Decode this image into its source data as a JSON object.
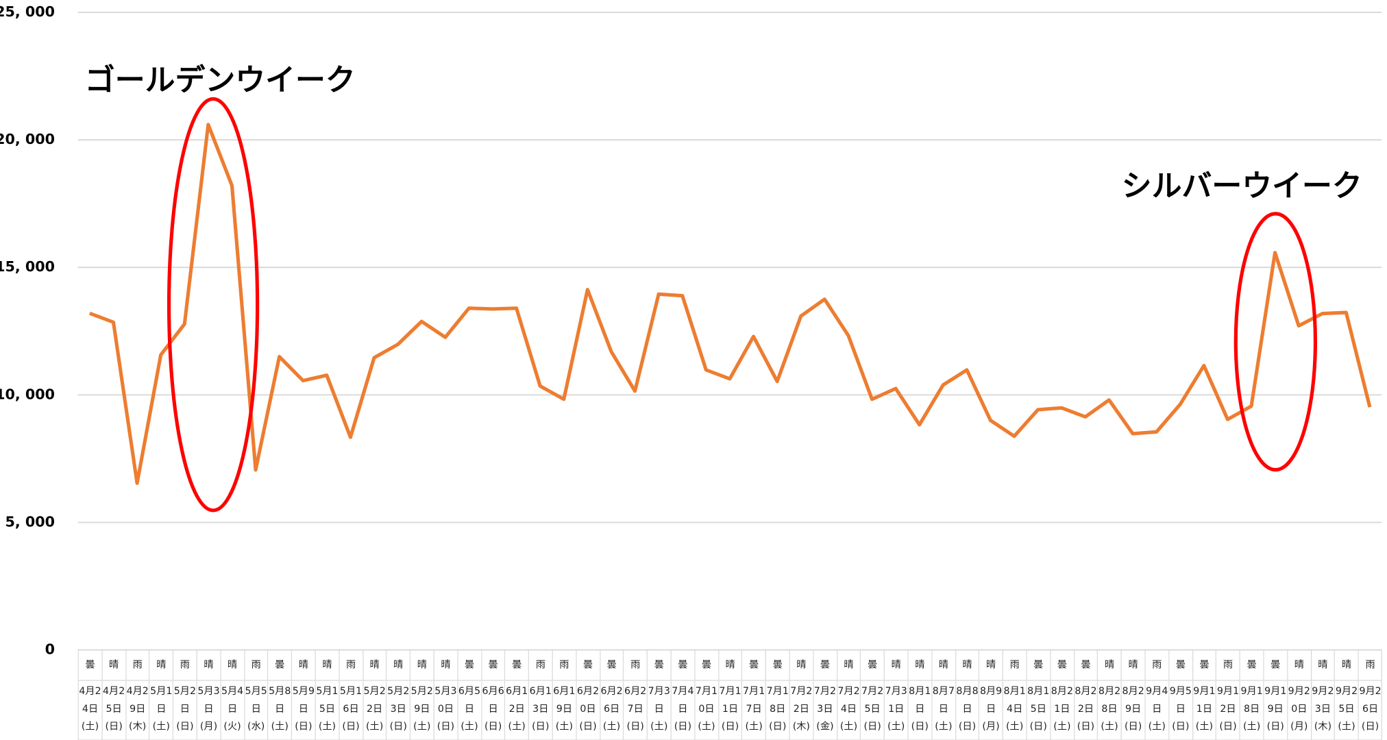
{
  "chart_data": {
    "type": "line",
    "annotations": [
      "ゴールデンウイーク",
      "シルバーウイーク"
    ],
    "weather": [
      "曇",
      "晴",
      "雨",
      "晴",
      "雨",
      "晴",
      "晴",
      "雨",
      "曇",
      "晴",
      "晴",
      "雨",
      "晴",
      "晴",
      "晴",
      "晴",
      "曇",
      "曇",
      "曇",
      "雨",
      "雨",
      "曇",
      "曇",
      "雨",
      "曇",
      "曇",
      "曇",
      "晴",
      "曇",
      "曇",
      "晴",
      "曇",
      "晴",
      "曇",
      "晴",
      "晴",
      "晴",
      "晴",
      "晴",
      "雨",
      "曇",
      "曇",
      "曇",
      "晴",
      "晴",
      "雨",
      "曇",
      "曇",
      "雨",
      "曇",
      "曇",
      "晴",
      "晴",
      "晴",
      "雨"
    ],
    "categories": [
      "4月24日(土)",
      "4月25日(日)",
      "4月29日(木)",
      "5月1日(土)",
      "5月2日(日)",
      "5月3日(月)",
      "5月4日(火)",
      "5月5日(水)",
      "5月8日(土)",
      "5月9日(日)",
      "5月15日(土)",
      "5月16日(日)",
      "5月22日(土)",
      "5月23日(日)",
      "5月29日(土)",
      "5月30日(日)",
      "6月5日(土)",
      "6月6日(日)",
      "6月12日(土)",
      "6月13日(日)",
      "6月19日(土)",
      "6月20日(日)",
      "6月26日(土)",
      "6月27日(日)",
      "7月3日(土)",
      "7月4日(日)",
      "7月10日(土)",
      "7月11日(日)",
      "7月17日(土)",
      "7月18日(日)",
      "7月22日(木)",
      "7月23日(金)",
      "7月24日(土)",
      "7月25日(日)",
      "7月31日(土)",
      "8月1日(日)",
      "8月7日(土)",
      "8月8日(日)",
      "8月9日(月)",
      "8月14日(土)",
      "8月15日(日)",
      "8月21日(土)",
      "8月22日(日)",
      "8月28日(土)",
      "8月29日(日)",
      "9月4日(土)",
      "9月5日(日)",
      "9月11日(土)",
      "9月12日(日)",
      "9月18日(土)",
      "9月19日(日)",
      "9月20日(月)",
      "9月23日(木)",
      "9月25日(土)",
      "9月26日(日)"
    ],
    "values": [
      13200,
      12850,
      6540,
      11570,
      12780,
      20600,
      18210,
      7060,
      11500,
      10560,
      10770,
      8340,
      11460,
      11980,
      12880,
      12260,
      13400,
      13370,
      13400,
      10350,
      9830,
      14130,
      11700,
      10150,
      13950,
      13890,
      10980,
      10630,
      12290,
      10530,
      13090,
      13750,
      12330,
      9830,
      10250,
      8830,
      10390,
      10980,
      9000,
      8380,
      9420,
      9490,
      9140,
      9800,
      8480,
      8550,
      9630,
      11150,
      9040,
      9560,
      15580,
      12710,
      13190,
      13230,
      9520
    ],
    "color": "#ed7d31",
    "ylim": [
      0,
      25000
    ],
    "yticks": [
      0,
      {
        "value": 5000,
        "label": "5, 000"
      },
      {
        "value": 10000,
        "label": "10, 000"
      },
      {
        "value": 15000,
        "label": "15, 000"
      },
      {
        "value": 20000,
        "label": "20, 000"
      },
      {
        "value": 25000,
        "label": "25, 000"
      }
    ],
    "grid": true
  }
}
